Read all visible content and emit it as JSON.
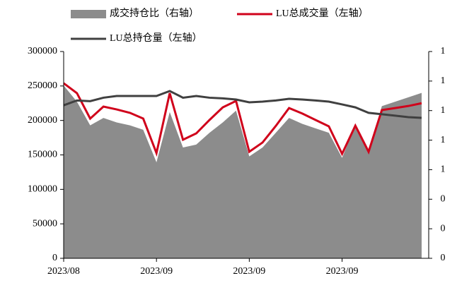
{
  "chart_data": {
    "type": "combo",
    "categories": [
      "2023/08",
      null,
      null,
      null,
      null,
      null,
      null,
      "2023/09",
      null,
      null,
      null,
      null,
      null,
      null,
      "2023/09",
      null,
      null,
      null,
      null,
      null,
      null,
      "2023/09",
      null,
      null,
      null,
      null,
      null,
      null
    ],
    "series": [
      {
        "name": "成交持仓比（右轴）",
        "type": "area",
        "axis": "y2",
        "color": "#8c8c8c",
        "values": [
          1.17,
          1.06,
          0.9,
          0.95,
          0.92,
          0.9,
          0.87,
          0.65,
          0.99,
          0.75,
          0.77,
          0.85,
          0.92,
          1.0,
          0.69,
          0.75,
          0.85,
          0.95,
          0.91,
          0.88,
          0.85,
          0.68,
          0.9,
          0.71,
          1.03,
          1.06,
          1.09,
          1.12
        ]
      },
      {
        "name": "LU总成交量（左轴）",
        "type": "line",
        "color": "#d0021b",
        "values": [
          254000,
          239600,
          202700,
          220100,
          216000,
          211000,
          202700,
          152600,
          239600,
          172000,
          181200,
          200700,
          219000,
          228300,
          154600,
          168000,
          192000,
          218000,
          210000,
          200700,
          191500,
          151500,
          192500,
          154600,
          215000,
          218000,
          221000,
          225000
        ]
      },
      {
        "name": "LU总持仓量（左轴）",
        "type": "line",
        "color": "#404040",
        "values": [
          222000,
          229000,
          228000,
          233000,
          235500,
          235500,
          235500,
          235500,
          242700,
          233000,
          235500,
          233000,
          232000,
          230400,
          226300,
          227300,
          229000,
          231400,
          230400,
          229000,
          227300,
          223300,
          219000,
          211000,
          209000,
          207000,
          204800,
          203800
        ]
      }
    ],
    "ylim": [
      0,
      300000
    ],
    "yticks": [
      0,
      50000,
      100000,
      150000,
      200000,
      250000,
      300000
    ],
    "y2lim": [
      0,
      1.4
    ],
    "y2ticks": [
      {
        "value": 0,
        "label": "0"
      },
      {
        "value": 0.2,
        "label": "0"
      },
      {
        "value": 0.4,
        "label": "0"
      },
      {
        "value": 0.6,
        "label": "1"
      },
      {
        "value": 0.8,
        "label": "1"
      },
      {
        "value": 1.0,
        "label": "1"
      },
      {
        "value": 1.2,
        "label": "1"
      },
      {
        "value": 1.4,
        "label": "1"
      }
    ],
    "grid": false
  }
}
